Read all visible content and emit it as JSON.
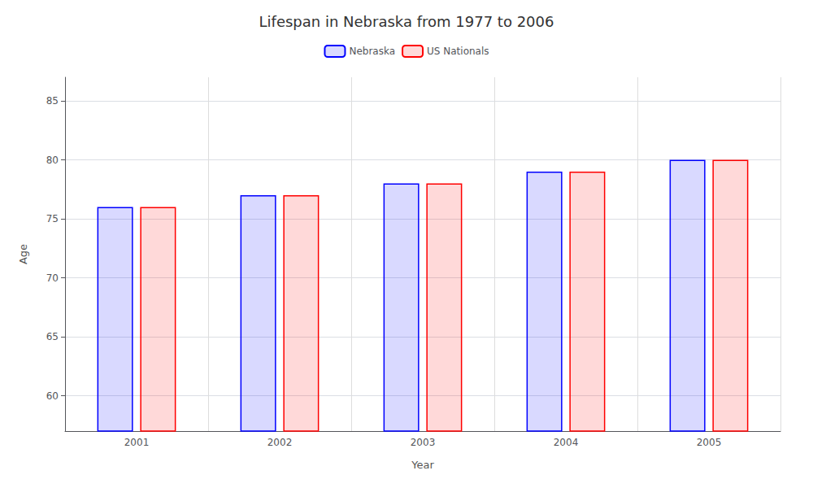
{
  "chart_data": {
    "type": "bar",
    "title": "Lifespan in Nebraska from 1977 to 2006",
    "x_label": "Year",
    "y_label": "Age",
    "categories": [
      2001,
      2002,
      2003,
      2004,
      2005
    ],
    "series": [
      {
        "name": "Nebraska",
        "color": "#0000ff",
        "values": [
          76,
          77,
          78,
          79,
          80
        ]
      },
      {
        "name": "US Nationals",
        "color": "#ff0000",
        "values": [
          76,
          77,
          78,
          79,
          80
        ]
      }
    ],
    "ylim": [
      57,
      87
    ],
    "yticks": [
      60,
      65,
      70,
      75,
      80,
      85
    ],
    "grid": true,
    "legend": "top"
  }
}
